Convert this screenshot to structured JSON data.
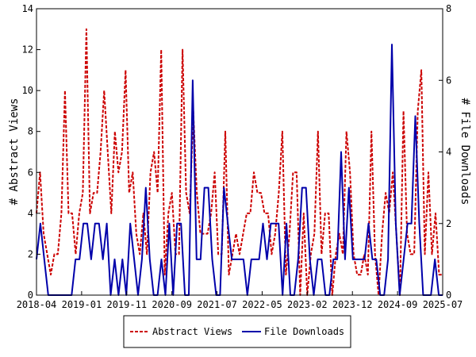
{
  "chart_data": {
    "type": "line",
    "x_tick_labels": [
      "2018-04",
      "2019-01",
      "2019-11",
      "2020-09",
      "2021-07",
      "2022-05",
      "2023-02",
      "2023-12",
      "2024-09",
      "2025-07"
    ],
    "x_range": [
      "2018-04",
      "2025-07"
    ],
    "y_left": {
      "label": "# Abstract Views",
      "ylim": [
        0,
        14
      ],
      "ticks": [
        0,
        2,
        4,
        6,
        8,
        10,
        12,
        14
      ]
    },
    "y_right": {
      "label": "# File Downloads",
      "ylim": [
        0,
        8
      ],
      "ticks": [
        0,
        2,
        4,
        6,
        8
      ]
    },
    "grid": false,
    "legend_placement": "bottom-center",
    "series": [
      {
        "name": "Abstract Views",
        "axis": "left",
        "color": "#cc0000",
        "style": "dashed",
        "values": [
          4,
          6,
          3,
          2,
          1,
          2,
          2,
          4,
          10,
          4,
          4,
          2,
          4,
          5,
          13,
          4,
          5,
          5,
          7,
          10,
          7,
          4,
          8,
          6,
          7,
          11,
          5,
          6,
          3,
          2,
          4,
          2,
          6,
          7,
          5,
          12,
          1,
          4,
          5,
          2,
          2,
          12,
          5,
          4,
          9,
          5,
          3,
          3,
          3,
          4,
          6,
          2,
          2,
          8,
          1,
          2,
          3,
          2,
          3,
          4,
          4,
          6,
          5,
          5,
          4,
          4,
          2,
          3,
          5,
          8,
          1,
          3,
          6,
          6,
          0,
          4,
          0,
          2,
          3,
          8,
          2,
          4,
          4,
          0,
          2,
          3,
          2,
          8,
          6,
          2,
          1,
          1,
          2,
          1,
          8,
          2,
          0,
          3,
          5,
          4,
          6,
          3,
          0,
          9,
          3,
          2,
          2,
          9,
          11,
          2,
          6,
          2,
          4,
          1,
          1
        ]
      },
      {
        "name": "File Downloads",
        "axis": "right",
        "color": "#0000aa",
        "style": "solid",
        "values": [
          1,
          2,
          1,
          0,
          0,
          0,
          0,
          0,
          0,
          0,
          1,
          1,
          2,
          2,
          1,
          2,
          2,
          1,
          2,
          0,
          1,
          0,
          1,
          0,
          2,
          1,
          0,
          1,
          3,
          1,
          0,
          0,
          1,
          0,
          2,
          0,
          2,
          2,
          0,
          0,
          6,
          1,
          1,
          3,
          3,
          1,
          0,
          0,
          3,
          2,
          1,
          1,
          1,
          1,
          0,
          1,
          1,
          1,
          2,
          1,
          2,
          2,
          2,
          0,
          2,
          0,
          0,
          1,
          3,
          3,
          1,
          0,
          1,
          1,
          0,
          0,
          1,
          1,
          4,
          1,
          3,
          1,
          1,
          1,
          1,
          2,
          1,
          1,
          0,
          0,
          1,
          7,
          2,
          0,
          1,
          2,
          2,
          5,
          2,
          0,
          0,
          0,
          1,
          0,
          0
        ]
      }
    ]
  }
}
